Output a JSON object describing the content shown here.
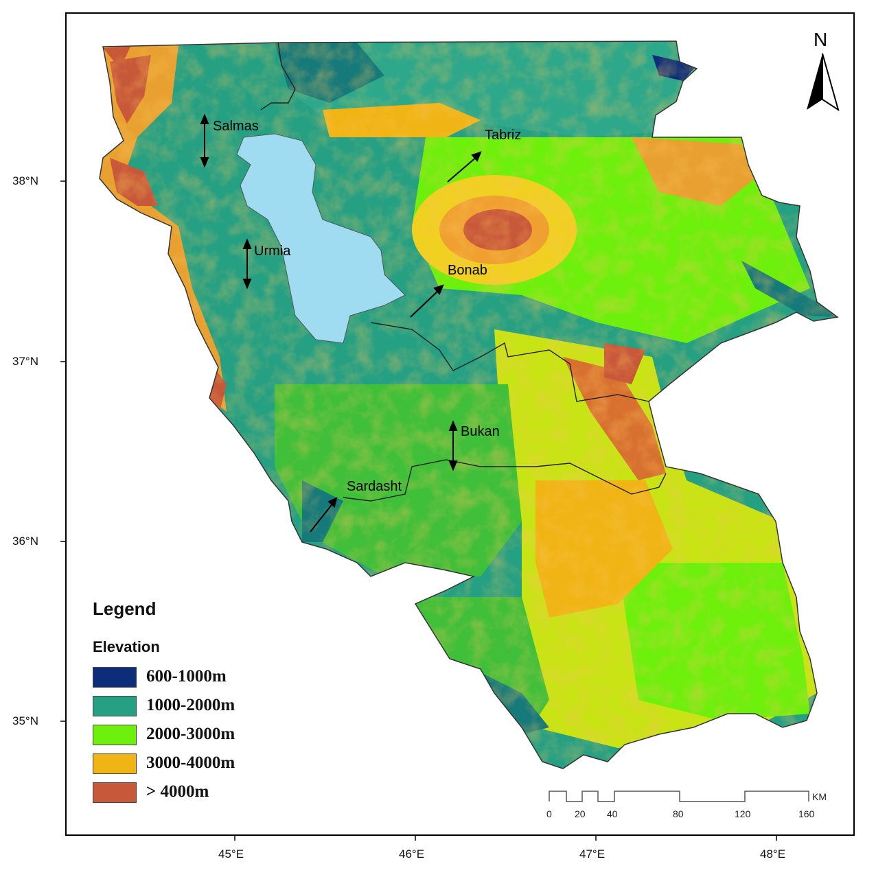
{
  "legend": {
    "title": "Legend",
    "subtitle": "Elevation",
    "classes": [
      {
        "label": "600-1000m",
        "color": "#0c2e7a"
      },
      {
        "label": "1000-2000m",
        "color": "#25a083"
      },
      {
        "label": "2000-3000m",
        "color": "#6cf00c"
      },
      {
        "label": "3000-4000m",
        "color": "#f0b414"
      },
      {
        "label": "> 4000m",
        "color": "#c8583a"
      }
    ]
  },
  "north_arrow": {
    "label": "N"
  },
  "lat_labels": [
    "38°N",
    "37°N",
    "36°N",
    "35°N"
  ],
  "lon_labels": [
    "45°E",
    "46°E",
    "47°E",
    "48°E"
  ],
  "cities": [
    {
      "name": "Salmas",
      "arrow": "double-vertical"
    },
    {
      "name": "Tabriz",
      "arrow": "diagonal"
    },
    {
      "name": "Urmia",
      "arrow": "double-vertical"
    },
    {
      "name": "Bonab",
      "arrow": "diagonal"
    },
    {
      "name": "Bukan",
      "arrow": "double-vertical"
    },
    {
      "name": "Sardasht",
      "arrow": "diagonal"
    }
  ],
  "scale_bar": {
    "unit": "KM",
    "ticks": [
      "0",
      "20",
      "40",
      "80",
      "120",
      "160"
    ]
  },
  "colors": {
    "lake": "#9fdcf2",
    "low": "#0c2e7a",
    "mid": "#25a083",
    "high": "#6cf00c",
    "higher": "#f0b414",
    "peak": "#c8583a"
  }
}
